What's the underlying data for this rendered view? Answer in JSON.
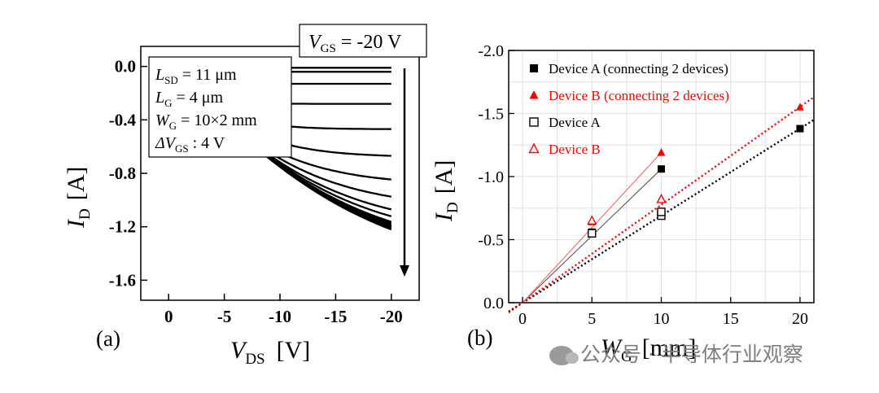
{
  "charts": {
    "a": {
      "panel_label": "(a)",
      "vgs_label": {
        "sym": "V",
        "sub": "GS",
        "rest": " = -20 V"
      },
      "info": [
        {
          "sym": "L",
          "sub": "SD",
          "rest": " = 11 μm"
        },
        {
          "sym": "L",
          "sub": "G",
          "rest": " = 4 μm"
        },
        {
          "sym": "W",
          "sub": "G",
          "rest": " = 10×2 mm"
        },
        {
          "sym": "ΔV",
          "sub": "GS",
          "rest": " : 4 V"
        }
      ]
    },
    "b": {
      "panel_label": "(b)"
    }
  },
  "chart_data": [
    {
      "type": "line",
      "xlabel": {
        "sym": "V",
        "sub": "DS",
        "unit": "[V]"
      },
      "ylabel": {
        "sym": "I",
        "sub": "D",
        "unit": "[A]"
      },
      "xlim": [
        2.5,
        -22.5
      ],
      "ylim": [
        0.15,
        -1.75
      ],
      "xticks": [
        0,
        -5,
        -10,
        -15,
        -20
      ],
      "xtick_labels": [
        "0",
        "-5",
        "-10",
        "-15",
        "-20"
      ],
      "yticks": [
        0.0,
        -0.4,
        -0.8,
        -1.2,
        -1.6
      ],
      "ytick_labels": [
        "0.0",
        "-0.4",
        "-0.8",
        "-1.2",
        "-1.6"
      ],
      "grid": false,
      "series": [
        {
          "vgs": -20,
          "isat": -1.56,
          "slope": 0.082
        },
        {
          "vgs": -19,
          "isat": -1.54,
          "slope": 0.082
        },
        {
          "vgs": -18,
          "isat": -1.52,
          "slope": 0.082
        },
        {
          "vgs": -17,
          "isat": -1.5,
          "slope": 0.082
        },
        {
          "vgs": -16,
          "isat": -1.48,
          "slope": 0.082
        },
        {
          "vgs": -15,
          "isat": -1.45,
          "slope": 0.082
        },
        {
          "vgs": -14,
          "isat": -1.42,
          "slope": 0.082
        },
        {
          "vgs": -13,
          "isat": -1.33,
          "slope": 0.082
        },
        {
          "vgs": -12,
          "isat": -1.23,
          "slope": 0.082
        },
        {
          "vgs": -11,
          "isat": -1.07,
          "slope": 0.082
        },
        {
          "vgs": -10,
          "isat": -0.89,
          "slope": 0.082
        },
        {
          "vgs": -9,
          "isat": -0.68,
          "slope": 0.082
        },
        {
          "vgs": -8,
          "isat": -0.47,
          "slope": 0.082
        },
        {
          "vgs": -7,
          "isat": -0.28,
          "slope": 0.082
        },
        {
          "vgs": -6,
          "isat": -0.13,
          "slope": 0.082
        },
        {
          "vgs": -5,
          "isat": -0.04,
          "slope": 0.082
        },
        {
          "vgs": -4,
          "isat": -0.01,
          "slope": 0.082
        }
      ]
    },
    {
      "type": "scatter",
      "xlabel": {
        "sym": "W",
        "sub": "G",
        "unit": "[mm]"
      },
      "ylabel": {
        "sym": "I",
        "sub": "D",
        "unit": "[A]"
      },
      "xlim": [
        -1,
        21
      ],
      "ylim": [
        0.0,
        -2.0
      ],
      "xticks": [
        0,
        5,
        10,
        15,
        20
      ],
      "xtick_labels": [
        "0",
        "5",
        "10",
        "15",
        "20"
      ],
      "yticks": [
        0.0,
        -0.5,
        -1.0,
        -1.5,
        -2.0
      ],
      "ytick_labels": [
        "0.0",
        "-0.5",
        "-1.0",
        "-1.5",
        "-2.0"
      ],
      "grid": true,
      "legend_position": "top-left",
      "colors": {
        "black": "#000000",
        "red": "#ff0000"
      },
      "series": [
        {
          "name": "Device A (connecting 2 devices)",
          "marker": "square-filled",
          "color": "#000000",
          "x": [
            5,
            10
          ],
          "y": [
            -0.56,
            -1.06
          ],
          "line": "solid"
        },
        {
          "name": "Device B (connecting 2 devices)",
          "marker": "triangle-filled",
          "color": "#ff0000",
          "x": [
            5,
            10
          ],
          "y": [
            -0.64,
            -1.19
          ],
          "line": "solid"
        },
        {
          "name": "Device A",
          "marker": "square-open",
          "color": "#000000",
          "x": [
            5,
            10,
            10
          ],
          "y": [
            -0.55,
            -0.69,
            -0.72
          ],
          "line": "none"
        },
        {
          "name": "Device B",
          "marker": "triangle-open",
          "color": "#ff0000",
          "x": [
            5,
            10
          ],
          "y": [
            -0.65,
            -0.82
          ],
          "line": "none"
        },
        {
          "name": "",
          "marker": "square-filled",
          "color": "#000000",
          "x": [
            20
          ],
          "y": [
            -1.38
          ],
          "line": "none"
        },
        {
          "name": "",
          "marker": "triangle-filled",
          "color": "#ff0000",
          "x": [
            20
          ],
          "y": [
            -1.55
          ],
          "line": "none"
        }
      ],
      "fit_lines": [
        {
          "color": "#000000",
          "style": "dotted",
          "x": [
            -1,
            21
          ],
          "y": [
            0.07,
            -1.45
          ]
        },
        {
          "color": "#ff0000",
          "style": "dotted",
          "x": [
            -1,
            21
          ],
          "y": [
            0.078,
            -1.63
          ]
        }
      ]
    }
  ],
  "watermark": {
    "text": "公众号 · 半导体行业观察",
    "icon": "wechat-icon"
  }
}
